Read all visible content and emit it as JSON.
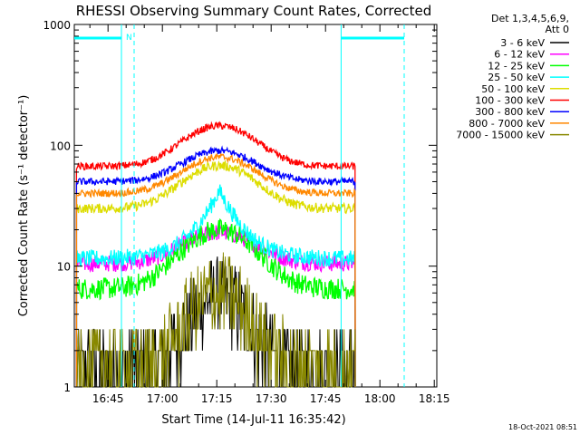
{
  "chart_data": {
    "type": "line",
    "title": "RHESSI Observing Summary Count Rates, Corrected",
    "xlabel": "Start Time (14-Jul-11 16:35:42)",
    "ylabel": "Corrected Count Rate (s⁻¹ detector⁻¹)",
    "yscale": "log",
    "ylim": [
      1,
      1000
    ],
    "xlim_minutes": [
      0,
      100
    ],
    "x_ticks": [
      {
        "label": "16:45",
        "min": 9.3
      },
      {
        "label": "17:00",
        "min": 24.3
      },
      {
        "label": "17:15",
        "min": 39.3
      },
      {
        "label": "17:30",
        "min": 54.3
      },
      {
        "label": "17:45",
        "min": 69.3
      },
      {
        "label": "18:00",
        "min": 84.3
      },
      {
        "label": "18:15",
        "min": 99.3
      }
    ],
    "y_ticks": [
      {
        "label": "1",
        "value": 1
      },
      {
        "label": "10",
        "value": 10
      },
      {
        "label": "100",
        "value": 100
      },
      {
        "label": "1000",
        "value": 1000
      }
    ],
    "legend_header": [
      "Det 1,3,4,5,6,9,",
      "Att 0"
    ],
    "series": [
      {
        "name": "3 - 6 keV",
        "color": "#000000",
        "base": 1.4,
        "peak": 5.5,
        "noise": 0.35,
        "profile": "hard"
      },
      {
        "name": "6 - 12 keV",
        "color": "#ff00ff",
        "base": 10.5,
        "peak": 19,
        "noise": 0.07,
        "profile": "broad"
      },
      {
        "name": "12 - 25 keV",
        "color": "#00ff00",
        "base": 6.5,
        "peak": 20,
        "noise": 0.09,
        "profile": "broad"
      },
      {
        "name": "25 - 50 keV",
        "color": "#00ffff",
        "base": 11.5,
        "peak": 42,
        "noise": 0.07,
        "profile": "sharp"
      },
      {
        "name": "50 - 100 keV",
        "color": "#dddd00",
        "base": 30,
        "peak": 68,
        "noise": 0.04,
        "profile": "broad"
      },
      {
        "name": "100 - 300 keV",
        "color": "#ff0000",
        "base": 67,
        "peak": 145,
        "noise": 0.03,
        "profile": "broad"
      },
      {
        "name": "300 - 800 keV",
        "color": "#0000ff",
        "base": 50,
        "peak": 90,
        "noise": 0.03,
        "profile": "broad"
      },
      {
        "name": "800 - 7000 keV",
        "color": "#ff8800",
        "base": 40,
        "peak": 80,
        "noise": 0.03,
        "profile": "broad"
      },
      {
        "name": "7000 - 15000 keV",
        "color": "#888800",
        "base": 1.5,
        "peak": 6,
        "noise": 0.35,
        "profile": "hard"
      }
    ],
    "data_window_minutes": [
      0.6,
      77.5
    ],
    "flare_peak_minutes": 40,
    "attenuator_markers": [
      {
        "label": "N",
        "line_min": 13,
        "dashed_min": 16.5
      },
      {
        "label": "",
        "line_min": 73.6,
        "dashed_min": 91
      }
    ],
    "timestamp": "18-Oct-2021 08:51"
  }
}
